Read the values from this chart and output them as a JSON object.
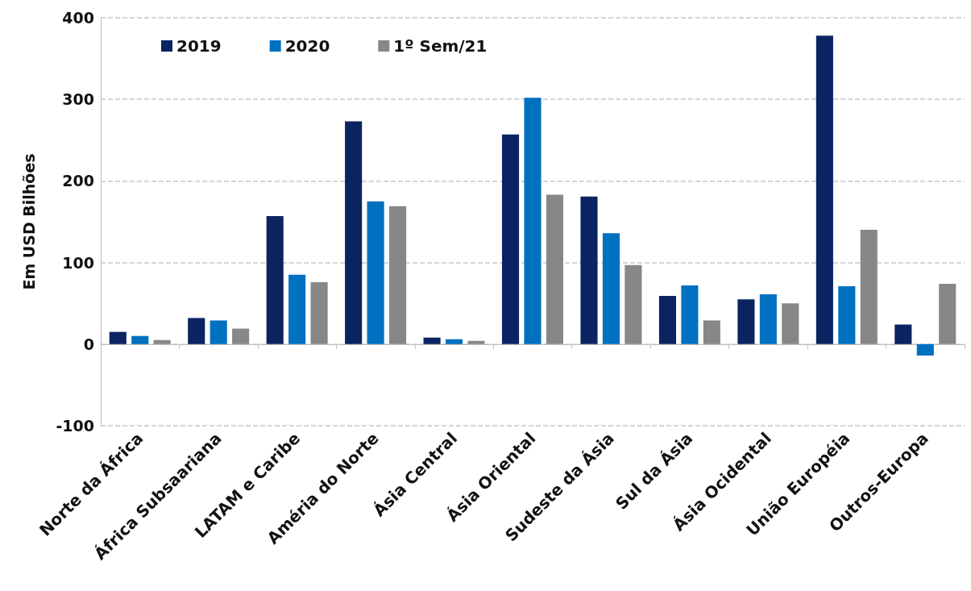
{
  "chart_data": {
    "type": "bar",
    "ylabel": "Em USD Bilhões",
    "categories": [
      "Norte da África",
      "África Subsaariana",
      "LATAM e Caribe",
      "Améria do Norte",
      "Ásia Central",
      "Ásia Oriental",
      "Sudeste da Ásia",
      "Sul da Ásia",
      "Ásia Ocidental",
      "União Européia",
      "Outros-Europa"
    ],
    "series": [
      {
        "name": "2019",
        "color": "#0b2461",
        "values": [
          15,
          32,
          157,
          273,
          8,
          257,
          181,
          59,
          55,
          378,
          24
        ]
      },
      {
        "name": "2020",
        "color": "#0070c0",
        "values": [
          10,
          29,
          85,
          175,
          6,
          302,
          136,
          72,
          61,
          71,
          -14
        ]
      },
      {
        "name": "1º Sem/21",
        "color": "#878787",
        "values": [
          5,
          19,
          76,
          169,
          4,
          183,
          97,
          29,
          50,
          140,
          74
        ]
      }
    ],
    "ylim": [
      -100,
      400
    ],
    "yticks": [
      -100,
      0,
      100,
      200,
      300,
      400
    ],
    "grid": "y",
    "legend": "top left"
  }
}
